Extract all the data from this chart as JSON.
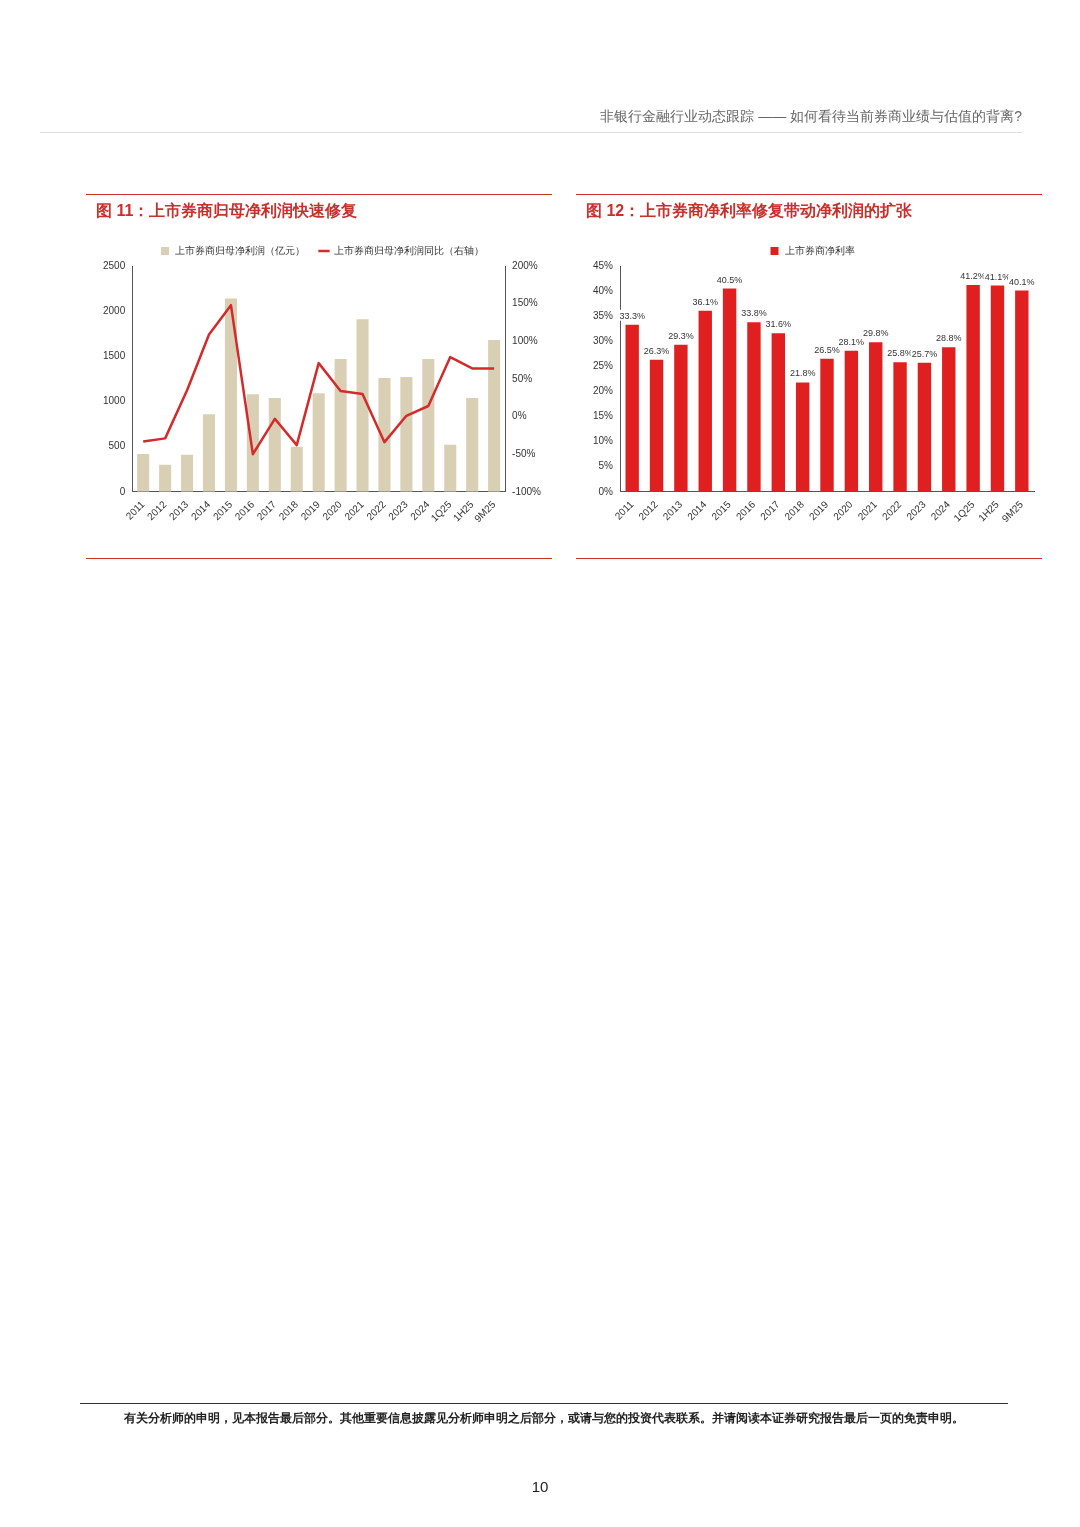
{
  "chart_data": [
    {
      "type": "bar",
      "title": "图 11：上市券商归母净利润快速修复",
      "categories": [
        "2011",
        "2012",
        "2013",
        "2014",
        "2015",
        "2016",
        "2017",
        "2018",
        "2019",
        "2020",
        "2021",
        "2022",
        "2023",
        "2024",
        "1Q25",
        "1H25",
        "9M25"
      ],
      "series": [
        {
          "name": "上市券商归母净利润（亿元）",
          "type": "bar",
          "color": "#d9cfb5",
          "values": [
            420,
            300,
            410,
            860,
            2140,
            1080,
            1040,
            500,
            1090,
            1470,
            1910,
            1260,
            1270,
            1470,
            520,
            1040,
            1680
          ]
        },
        {
          "name": "上市券商归母净利润同比（右轴）",
          "type": "line",
          "axis": "y2",
          "color": "#d42a2a",
          "values": [
            -33,
            -29,
            35,
            109,
            148,
            -50,
            -3,
            -38,
            71,
            34,
            30,
            -34,
            1,
            14,
            79,
            64,
            64
          ]
        }
      ],
      "ylim": [
        0,
        2500
      ],
      "yticks": [
        0,
        500,
        1000,
        1500,
        2000,
        2500
      ],
      "y2lim": [
        -100,
        200
      ],
      "y2ticks": [
        {
          "value": -100,
          "label": "-100%"
        },
        {
          "value": -50,
          "label": "-50%"
        },
        {
          "value": 0,
          "label": "0%"
        },
        {
          "value": 50,
          "label": "50%"
        },
        {
          "value": 100,
          "label": "100%"
        },
        {
          "value": 150,
          "label": "150%"
        },
        {
          "value": 200,
          "label": "200%"
        }
      ],
      "legend": "top",
      "grid": false,
      "marker": "none",
      "annotations": [
        "非银行金融行业动态跟踪 —— 如何看待当前券商业绩与估值的背离?",
        "有关分析师的申明，见本报告最后部分。其他重要信息披露见分析师申明之后部分，或请与您的投资代表联系。并请阅读本证券研究报告最后一页的免责申明。",
        "10"
      ]
    },
    {
      "type": "bar",
      "title": "图 12：上市券商净利率修复带动净利润的扩张",
      "categories": [
        "2011",
        "2012",
        "2013",
        "2014",
        "2015",
        "2016",
        "2017",
        "2018",
        "2019",
        "2020",
        "2021",
        "2022",
        "2023",
        "2024",
        "1Q25",
        "1H25",
        "9M25"
      ],
      "series": [
        {
          "name": "上市券商净利率",
          "color": "#e02020",
          "values": [
            33.3,
            26.3,
            29.3,
            36.1,
            40.5,
            33.8,
            31.6,
            21.8,
            26.5,
            28.1,
            29.8,
            25.8,
            25.7,
            28.8,
            41.2,
            41.1,
            40.1
          ],
          "value_labels": [
            "33.3%",
            "26.3%",
            "29.3%",
            "36.1%",
            "40.5%",
            "33.8%",
            "31.6%",
            "21.8%",
            "26.5%",
            "28.1%",
            "29.8%",
            "25.8%",
            "25.7%",
            "28.8%",
            "41.2%",
            "41.1%",
            "40.1%"
          ]
        }
      ],
      "ylim": [
        0,
        45
      ],
      "yticks": [
        {
          "value": 0,
          "label": "0%"
        },
        {
          "value": 5,
          "label": "5%"
        },
        {
          "value": 10,
          "label": "10%"
        },
        {
          "value": 15,
          "label": "15%"
        },
        {
          "value": 20,
          "label": "20%"
        },
        {
          "value": 25,
          "label": "25%"
        },
        {
          "value": 30,
          "label": "30%"
        },
        {
          "value": 35,
          "label": "35%"
        },
        {
          "value": 40,
          "label": "40%"
        },
        {
          "value": 45,
          "label": "45%"
        }
      ],
      "legend": "top",
      "grid": false
    }
  ]
}
